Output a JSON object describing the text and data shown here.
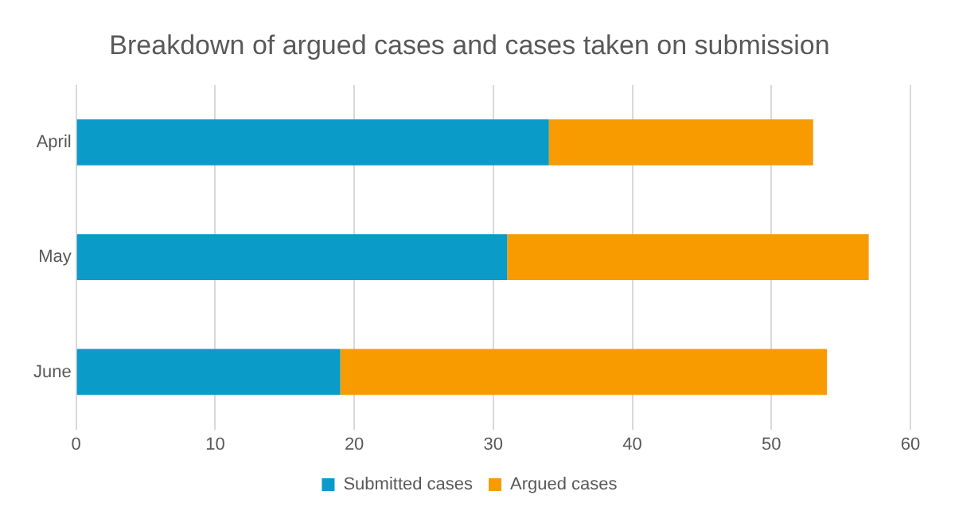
{
  "chart_data": {
    "type": "bar",
    "title": "Breakdown of argued cases and cases taken on submission",
    "orientation": "horizontal",
    "stacked": true,
    "categories": [
      "April",
      "May",
      "June"
    ],
    "series": [
      {
        "name": "Submitted cases",
        "color": "#0a9bc9",
        "values": [
          34,
          31,
          19
        ]
      },
      {
        "name": "Argued cases",
        "color": "#f79b00",
        "values": [
          19,
          26,
          35
        ]
      }
    ],
    "xlim": [
      0,
      60
    ],
    "xticks": [
      0,
      10,
      20,
      30,
      40,
      50,
      60
    ],
    "grid": "x",
    "legend": "bottom"
  }
}
